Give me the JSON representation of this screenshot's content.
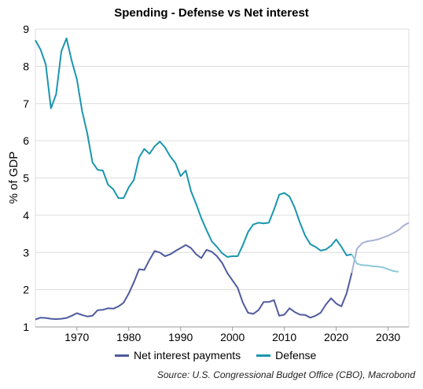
{
  "chart_data": {
    "type": "line",
    "title": "Spending - Defense vs Net interest",
    "ylabel": "% of GDP",
    "xlabel": "",
    "xlim": [
      1962,
      2034
    ],
    "ylim": [
      1,
      9
    ],
    "xticks": [
      1970,
      1980,
      1990,
      2000,
      2010,
      2020,
      2030
    ],
    "yticks": [
      1,
      2,
      3,
      4,
      5,
      6,
      7,
      8,
      9
    ],
    "grid": true,
    "legend_position": "bottom",
    "source": "Source: U.S. Congressional Budget Office (CBO), Macrobond",
    "projection_start": 2023,
    "series": [
      {
        "name": "Net interest payments",
        "color": "#4f5b9e",
        "projection_color": "#a9b1d6",
        "x": [
          1962,
          1963,
          1964,
          1965,
          1966,
          1967,
          1968,
          1969,
          1970,
          1971,
          1972,
          1973,
          1974,
          1975,
          1976,
          1977,
          1978,
          1979,
          1980,
          1981,
          1982,
          1983,
          1984,
          1985,
          1986,
          1987,
          1988,
          1989,
          1990,
          1991,
          1992,
          1993,
          1994,
          1995,
          1996,
          1997,
          1998,
          1999,
          2000,
          2001,
          2002,
          2003,
          2004,
          2005,
          2006,
          2007,
          2008,
          2009,
          2010,
          2011,
          2012,
          2013,
          2014,
          2015,
          2016,
          2017,
          2018,
          2019,
          2020,
          2021,
          2022,
          2023,
          2024,
          2025,
          2026,
          2027,
          2028,
          2029,
          2030,
          2031,
          2032,
          2033,
          2034
        ],
        "values": [
          1.2,
          1.25,
          1.24,
          1.22,
          1.21,
          1.22,
          1.24,
          1.3,
          1.37,
          1.32,
          1.28,
          1.3,
          1.45,
          1.46,
          1.5,
          1.49,
          1.55,
          1.65,
          1.9,
          2.2,
          2.55,
          2.53,
          2.8,
          3.04,
          3.0,
          2.9,
          2.95,
          3.04,
          3.12,
          3.2,
          3.12,
          2.95,
          2.85,
          3.07,
          3.02,
          2.9,
          2.72,
          2.45,
          2.25,
          2.05,
          1.65,
          1.38,
          1.35,
          1.45,
          1.67,
          1.67,
          1.72,
          1.3,
          1.33,
          1.5,
          1.4,
          1.33,
          1.32,
          1.25,
          1.3,
          1.38,
          1.6,
          1.77,
          1.63,
          1.55,
          1.9,
          2.45,
          3.1,
          3.25,
          3.3,
          3.32,
          3.35,
          3.4,
          3.45,
          3.52,
          3.6,
          3.72,
          3.8
        ]
      },
      {
        "name": "Defense",
        "color": "#1a96ae",
        "projection_color": "#8cc8d8",
        "x": [
          1962,
          1963,
          1964,
          1965,
          1966,
          1967,
          1968,
          1969,
          1970,
          1971,
          1972,
          1973,
          1974,
          1975,
          1976,
          1977,
          1978,
          1979,
          1980,
          1981,
          1982,
          1983,
          1984,
          1985,
          1986,
          1987,
          1988,
          1989,
          1990,
          1991,
          1992,
          1993,
          1994,
          1995,
          1996,
          1997,
          1998,
          1999,
          2000,
          2001,
          2002,
          2003,
          2004,
          2005,
          2006,
          2007,
          2008,
          2009,
          2010,
          2011,
          2012,
          2013,
          2014,
          2015,
          2016,
          2017,
          2018,
          2019,
          2020,
          2021,
          2022,
          2023,
          2024,
          2025,
          2026,
          2027,
          2028,
          2029,
          2030,
          2031,
          2032
        ],
        "values": [
          8.7,
          8.45,
          8.05,
          6.87,
          7.25,
          8.4,
          8.75,
          8.15,
          7.65,
          6.8,
          6.2,
          5.42,
          5.22,
          5.2,
          4.82,
          4.7,
          4.46,
          4.46,
          4.75,
          4.95,
          5.55,
          5.78,
          5.65,
          5.85,
          5.98,
          5.82,
          5.58,
          5.4,
          5.05,
          5.2,
          4.65,
          4.3,
          3.92,
          3.6,
          3.3,
          3.15,
          2.98,
          2.88,
          2.9,
          2.9,
          3.2,
          3.55,
          3.75,
          3.8,
          3.78,
          3.8,
          4.15,
          4.55,
          4.6,
          4.5,
          4.2,
          3.8,
          3.45,
          3.22,
          3.15,
          3.05,
          3.08,
          3.18,
          3.35,
          3.15,
          2.92,
          2.95,
          2.7,
          2.66,
          2.65,
          2.63,
          2.62,
          2.6,
          2.55,
          2.5,
          2.48
        ]
      }
    ]
  }
}
